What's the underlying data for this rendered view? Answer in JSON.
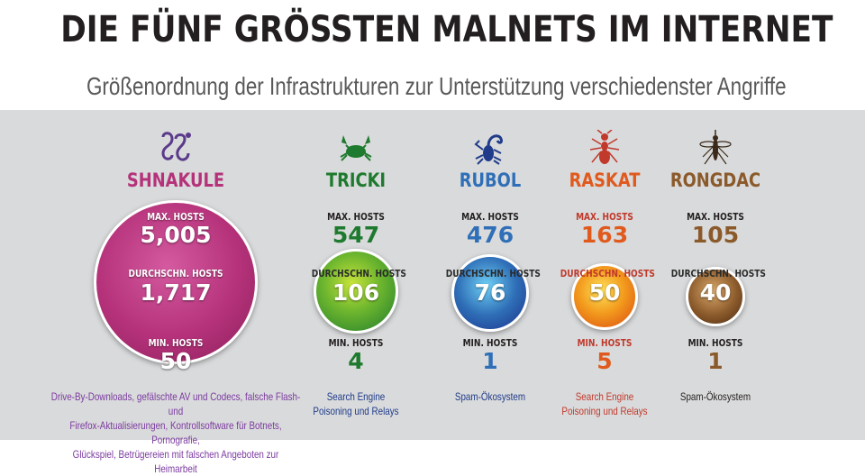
{
  "title": "DIE FÜNF GRÖSSTEN MALNETS IM INTERNET",
  "subtitle": "Größenordnung der Infrastrukturen zur Unterstützung verschiedenster Angriffe",
  "labels": {
    "max": "MAX. HOSTS",
    "avg": "DURCHSCHN. HOSTS",
    "min": "MIN. HOSTS"
  },
  "chart_data": {
    "type": "bubble",
    "title": "DIE FÜNF GRÖSSTEN MALNETS IM INTERNET",
    "subtitle": "Größenordnung der Infrastrukturen zur Unterstützung verschiedenster Angriffe",
    "categories": [
      "SHNAKULE",
      "TRICKI",
      "RUBOL",
      "RASKAT",
      "RONGDAC"
    ],
    "series": [
      {
        "name": "MAX. HOSTS",
        "values": [
          5005,
          547,
          476,
          163,
          105
        ]
      },
      {
        "name": "DURCHSCHN. HOSTS",
        "values": [
          1717,
          106,
          76,
          50,
          40
        ]
      },
      {
        "name": "MIN. HOSTS",
        "values": [
          50,
          4,
          1,
          5,
          1
        ]
      }
    ],
    "bubble_size_metric": "MAX. HOSTS"
  },
  "malnets": [
    {
      "name": "SHNAKULE",
      "icon": "snake-icon",
      "color": "#b5327a",
      "max_display": "5,005",
      "avg_display": "1,717",
      "min_display": "50",
      "desc_lines": [
        "Drive-By-Downloads, gefälschte AV und Codecs, falsche Flash- und",
        "Firefox-Aktualisierungen, Kontrollsoftware für Botnets, Pornografie,",
        "Glückspiel, Betrügereien mit falschen Angeboten zur Heimarbeit"
      ],
      "desc_color": "#7b3aa0"
    },
    {
      "name": "TRICKI",
      "icon": "crab-icon",
      "color": "#1e7a2e",
      "max_display": "547",
      "avg_display": "106",
      "min_display": "4",
      "desc_lines": [
        "Search Engine",
        "Poisoning und Relays"
      ],
      "desc_color": "#1f3b8a"
    },
    {
      "name": "RUBOL",
      "icon": "scorpion-icon",
      "color": "#2f6fb7",
      "max_display": "476",
      "avg_display": "76",
      "min_display": "1",
      "desc_lines": [
        "Spam-Ökosystem"
      ],
      "desc_color": "#1f3b8a"
    },
    {
      "name": "RASKAT",
      "icon": "ant-icon",
      "color": "#e05a1e",
      "max_display": "163",
      "avg_display": "50",
      "min_display": "5",
      "desc_lines": [
        "Search Engine",
        "Poisoning und Relays"
      ],
      "desc_color": "#c0392b"
    },
    {
      "name": "RONGDAC",
      "icon": "mosquito-icon",
      "color": "#8b5a2b",
      "max_display": "105",
      "avg_display": "40",
      "min_display": "1",
      "desc_lines": [
        "Spam-Ökosystem"
      ],
      "desc_color": "#231f20"
    }
  ]
}
